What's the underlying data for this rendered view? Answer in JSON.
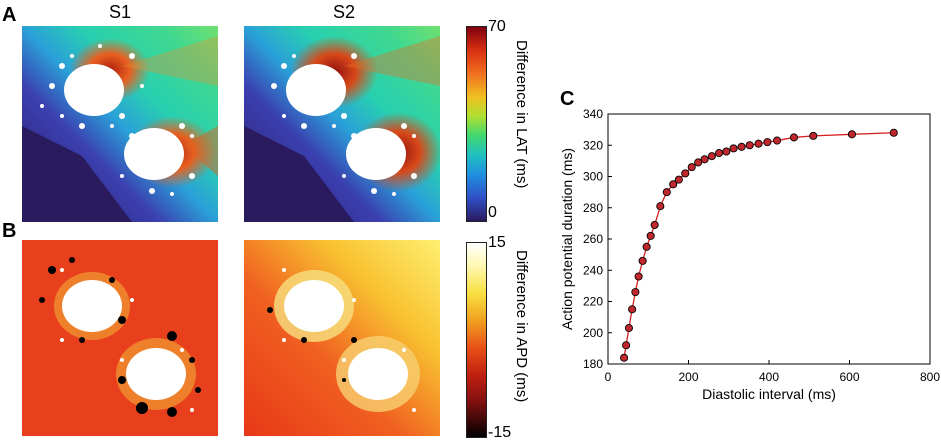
{
  "panels": {
    "a_label": "A",
    "b_label": "B",
    "c_label": "C"
  },
  "columns": {
    "s1": "S1",
    "s2": "S2"
  },
  "colorbar_lat": {
    "max": "70",
    "min": "0",
    "label": "Difference in LAT (ms)"
  },
  "colorbar_apd": {
    "max": "15",
    "min": "-15",
    "label": "Difference in APD (ms)"
  },
  "colors": {
    "dark_navy": "#2a1a5e",
    "marker_fill": "#c0282d",
    "line": "#d42020"
  },
  "chart_data": {
    "type": "line",
    "title": "",
    "xlabel": "Diastolic interval (ms)",
    "ylabel": "Action potential duration (ms)",
    "xlim": [
      0,
      800
    ],
    "ylim": [
      180,
      340
    ],
    "xticks": [
      0,
      200,
      400,
      600,
      800
    ],
    "yticks": [
      180,
      200,
      220,
      240,
      260,
      280,
      300,
      320,
      340
    ],
    "x": [
      40,
      45,
      52,
      60,
      68,
      76,
      86,
      96,
      106,
      116,
      130,
      146,
      162,
      176,
      192,
      208,
      224,
      240,
      258,
      276,
      294,
      312,
      332,
      352,
      374,
      396,
      420,
      462,
      510,
      606,
      710
    ],
    "y": [
      184,
      192,
      203,
      215,
      226,
      236,
      246,
      255,
      262,
      269,
      281,
      290,
      295,
      298,
      302,
      306,
      309,
      311,
      313,
      315,
      316,
      318,
      319,
      320,
      321,
      322,
      323,
      325,
      326,
      327,
      328
    ]
  }
}
